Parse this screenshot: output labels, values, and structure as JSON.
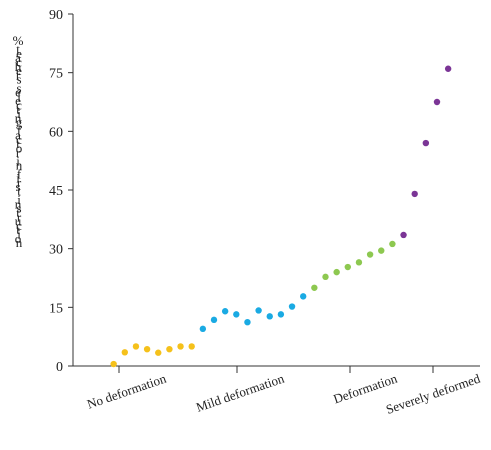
{
  "chart_data": {
    "type": "scatter",
    "title": "",
    "xlabel": "",
    "ylabel": "% teachers selecting factor in first instruction",
    "ylim": [
      0,
      90
    ],
    "yticks": [
      0,
      15,
      30,
      45,
      60,
      75,
      90
    ],
    "grid": false,
    "legend": "none",
    "categories": [
      "No deformation",
      "Mild deformation",
      "Deformation",
      "Severely deformed"
    ],
    "series": [
      {
        "category": "No deformation",
        "color": "#F5C11B",
        "points": [
          {
            "x": 1,
            "y": 0.5
          },
          {
            "x": 2,
            "y": 3.5
          },
          {
            "x": 3,
            "y": 5.0
          },
          {
            "x": 4,
            "y": 4.3
          },
          {
            "x": 5,
            "y": 3.4
          },
          {
            "x": 6,
            "y": 4.3
          },
          {
            "x": 7,
            "y": 5.0
          },
          {
            "x": 8,
            "y": 5.0
          }
        ]
      },
      {
        "category": "Mild deformation",
        "color": "#1AAAE3",
        "points": [
          {
            "x": 9,
            "y": 9.5
          },
          {
            "x": 10,
            "y": 11.8
          },
          {
            "x": 11,
            "y": 14.0
          },
          {
            "x": 12,
            "y": 13.2
          },
          {
            "x": 13,
            "y": 11.2
          },
          {
            "x": 14,
            "y": 14.2
          },
          {
            "x": 15,
            "y": 12.7
          },
          {
            "x": 16,
            "y": 13.2
          },
          {
            "x": 17,
            "y": 15.2
          },
          {
            "x": 18,
            "y": 17.8
          }
        ]
      },
      {
        "category": "Deformation",
        "color": "#8DC850",
        "points": [
          {
            "x": 19,
            "y": 20.0
          },
          {
            "x": 20,
            "y": 22.8
          },
          {
            "x": 21,
            "y": 24.0
          },
          {
            "x": 22,
            "y": 25.3
          },
          {
            "x": 23,
            "y": 26.5
          },
          {
            "x": 24,
            "y": 28.5
          },
          {
            "x": 25,
            "y": 29.5
          },
          {
            "x": 26,
            "y": 31.2
          }
        ]
      },
      {
        "category": "Severely deformed",
        "color": "#7B3596",
        "points": [
          {
            "x": 27,
            "y": 33.5
          },
          {
            "x": 28,
            "y": 44.0
          },
          {
            "x": 29,
            "y": 57.0
          },
          {
            "x": 30,
            "y": 67.5
          },
          {
            "x": 31,
            "y": 76.0
          }
        ]
      }
    ]
  }
}
